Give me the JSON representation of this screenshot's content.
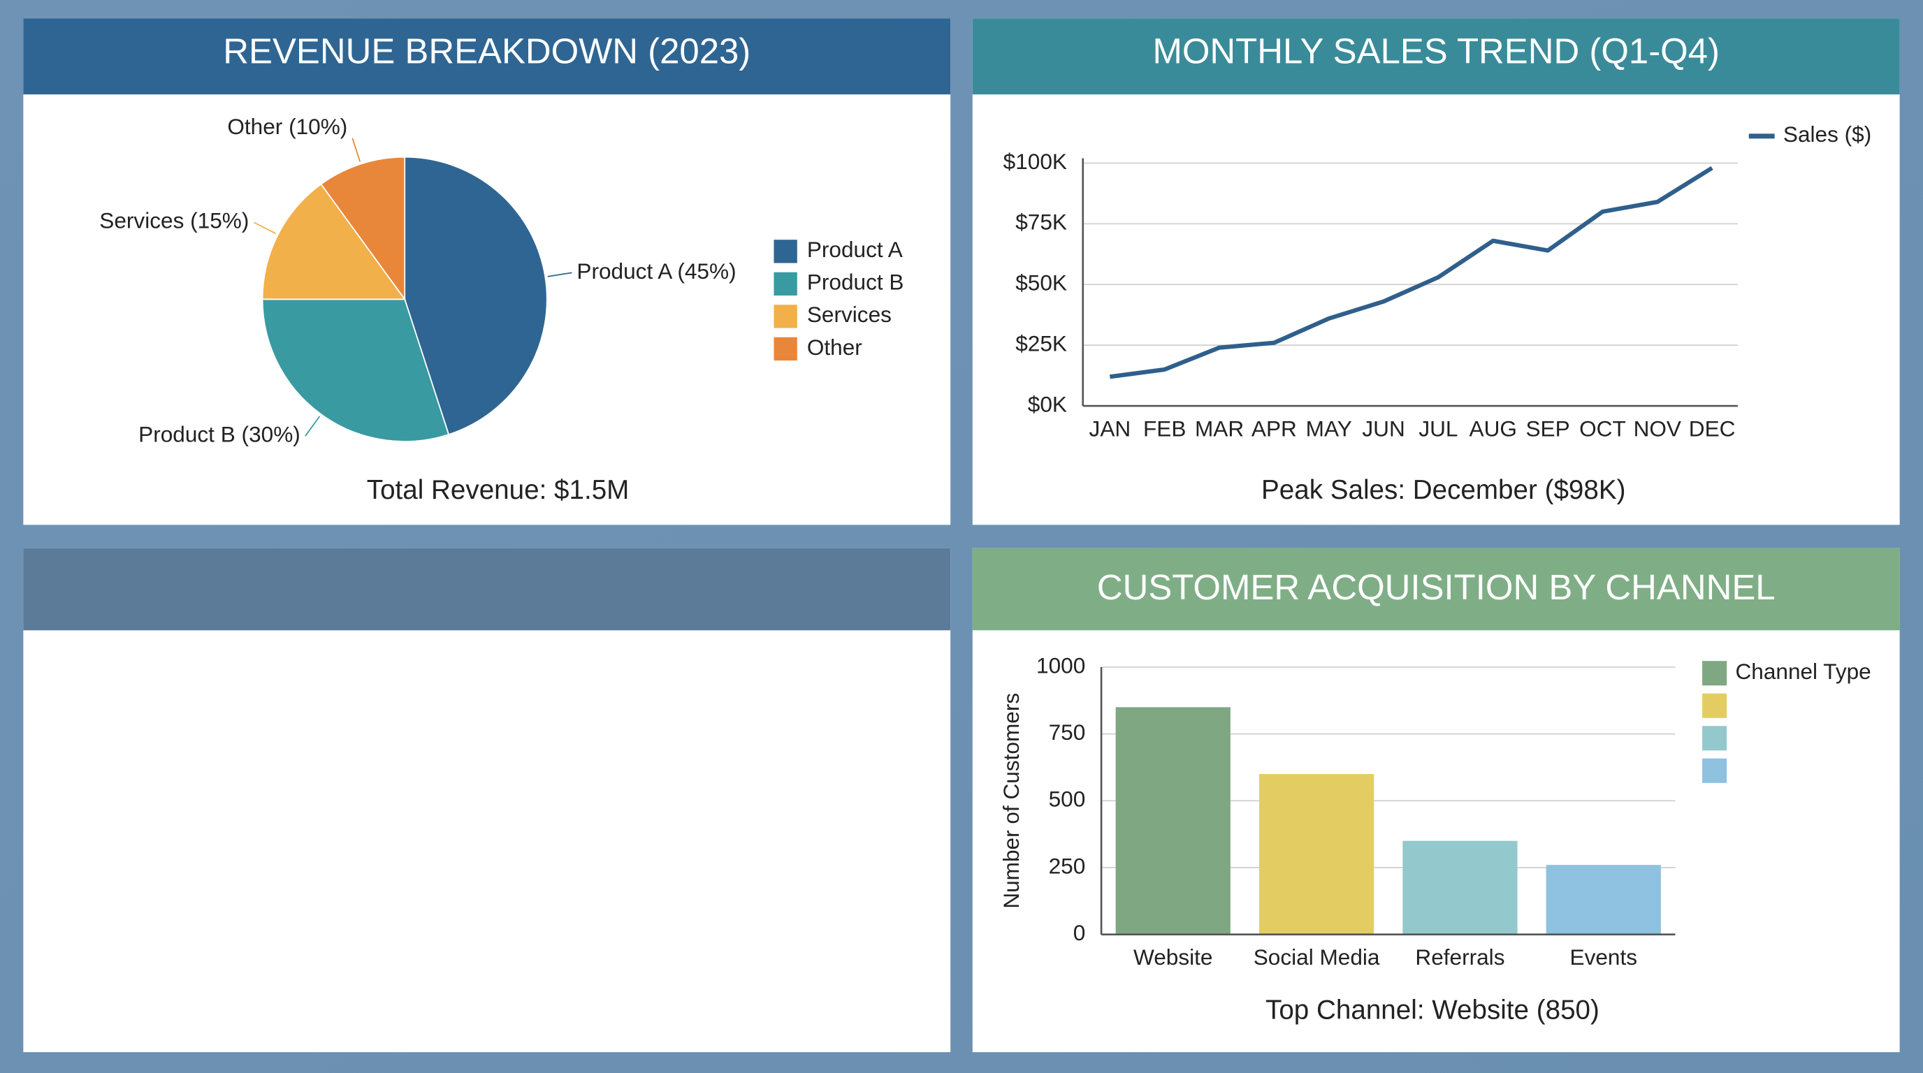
{
  "chart_data": [
    {
      "type": "pie",
      "title": "REVENUE BREAKDOWN (2023)",
      "categories": [
        "Product A",
        "Product B",
        "Services",
        "Other"
      ],
      "values": [
        45,
        30,
        15,
        10
      ],
      "value_labels": [
        "Product A (45%)",
        "Product B (30%)",
        "Services (15%)",
        "Other (10%)"
      ],
      "colors": [
        "#2f6592",
        "#3a9aa2",
        "#f2b04a",
        "#e8873a"
      ],
      "legend": "right",
      "note": "Total Revenue: $1.5M"
    },
    {
      "type": "line",
      "title": "MONTHLY SALES TREND (Q1-Q4)",
      "categories": [
        "JAN",
        "FEB",
        "MAR",
        "APR",
        "MAY",
        "JUN",
        "JUL",
        "AUG",
        "SEP",
        "OCT",
        "NOV",
        "DEC"
      ],
      "series": [
        {
          "name": "Sales ($)",
          "color": "#2f5f8c",
          "values": [
            12000,
            15000,
            24000,
            26000,
            36000,
            43000,
            53000,
            68000,
            64000,
            80000,
            84000,
            98000
          ]
        }
      ],
      "ylim": [
        0,
        100000
      ],
      "yticks": [
        {
          "value": 0,
          "label": "$0K"
        },
        {
          "value": 25000,
          "label": "$25K"
        },
        {
          "value": 50000,
          "label": "$50K"
        },
        {
          "value": 75000,
          "label": "$75K"
        },
        {
          "value": 100000,
          "label": "$100K"
        }
      ],
      "grid": true,
      "legend": "top-right",
      "note": "Peak Sales: December ($98K)"
    },
    {
      "type": "bar",
      "title": "CUSTOMER ACQUISITION BY CHANNEL",
      "categories": [
        "Website",
        "Social Media",
        "Referrals",
        "Events"
      ],
      "values": [
        850,
        600,
        350,
        260
      ],
      "colors": [
        "#7fa882",
        "#e3cd63",
        "#93c9cc",
        "#8fc1e0"
      ],
      "ylabel": "Number of Customers",
      "ylim": [
        0,
        1000
      ],
      "yticks": [
        0,
        250,
        500,
        750,
        1000
      ],
      "grid": true,
      "legend": "top-right",
      "legend_title": "Channel Type",
      "note": "Top Channel: Website (850)"
    }
  ]
}
